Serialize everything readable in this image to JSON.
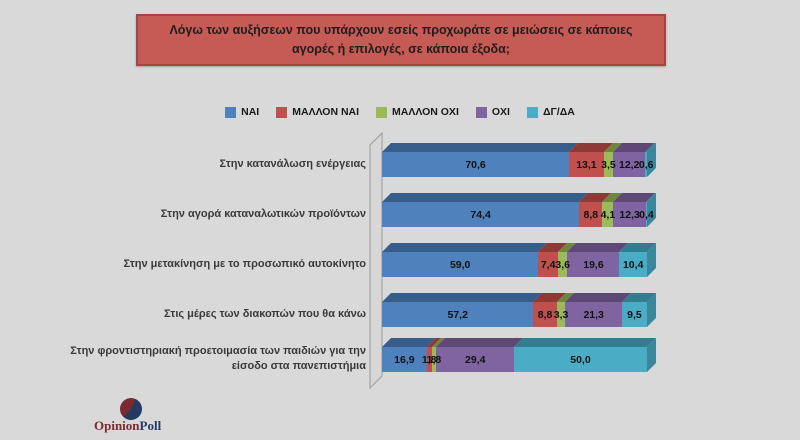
{
  "title": {
    "text": "Λόγω των αυξήσεων που υπάρχουν εσείς προχωράτε σε μειώσεις σε κάποιες αγορές ή επιλογές, σε κάποια έξοδα;"
  },
  "colors": {
    "background": "#d9d9d9",
    "title_fill": "#c65a54",
    "title_border": "#a6453f",
    "wall_fill": "#d7d7d7",
    "wall_stroke": "#9a9a9a"
  },
  "legend": [
    {
      "label": "ΝΑΙ",
      "color": "#4F81BD"
    },
    {
      "label": "ΜΑΛΛΟΝ ΝΑΙ",
      "color": "#C0504D"
    },
    {
      "label": "ΜΑΛΛΟΝ ΟΧΙ",
      "color": "#9BBB59"
    },
    {
      "label": "ΟΧΙ",
      "color": "#8064A2"
    },
    {
      "label": "ΔΓ/ΔΑ",
      "color": "#4BACC6"
    }
  ],
  "chart_data": {
    "type": "bar",
    "orientation": "horizontal",
    "stacked": true,
    "style": "3d",
    "grid": false,
    "legend_position": "top",
    "xlim": [
      0,
      100
    ],
    "categories": [
      "Στην κατανάλωση ενέργειας",
      "Στην αγορά καταναλωτικών προϊόντων",
      "Στην μετακίνηση με το προσωπικό αυτοκίνητο",
      "Στις μέρες των διακοπών που θα κάνω",
      "Στην φροντιστηριακή προετοιμασία των παιδιών για την είσοδο στα πανεπιστήμια"
    ],
    "series": [
      {
        "name": "ΝΑΙ",
        "color": "#4F81BD",
        "values": [
          70.6,
          74.4,
          59.0,
          57.2,
          16.9
        ]
      },
      {
        "name": "ΜΑΛΛΟΝ ΝΑΙ",
        "color": "#C0504D",
        "values": [
          13.1,
          8.8,
          7.4,
          8.8,
          1.8
        ]
      },
      {
        "name": "ΜΑΛΛΟΝ ΟΧΙ",
        "color": "#9BBB59",
        "values": [
          3.5,
          4.1,
          3.6,
          3.3,
          1.8
        ]
      },
      {
        "name": "ΟΧΙ",
        "color": "#8064A2",
        "values": [
          12.2,
          12.3,
          19.6,
          21.3,
          29.4
        ]
      },
      {
        "name": "ΔΓ/ΔΑ",
        "color": "#4BACC6",
        "values": [
          0.6,
          0.4,
          10.4,
          9.5,
          50.0
        ]
      }
    ],
    "value_labels": [
      [
        "70,6",
        "13,1",
        "3,5",
        "12,2",
        "0,6"
      ],
      [
        "74,4",
        "8,8",
        "4,1",
        "12,3",
        "0,4"
      ],
      [
        "59,0",
        "7,4",
        "3,6",
        "19,6",
        "10,4"
      ],
      [
        "57,2",
        "8,8",
        "3,3",
        "21,3",
        "9,5"
      ],
      [
        "16,9",
        "1,8",
        "1,8",
        "29,4",
        "50,0"
      ]
    ]
  },
  "logo": {
    "part1": "Opinion",
    "part2": "Poll",
    "color1": "#7a2a30",
    "color2": "#243a61"
  }
}
